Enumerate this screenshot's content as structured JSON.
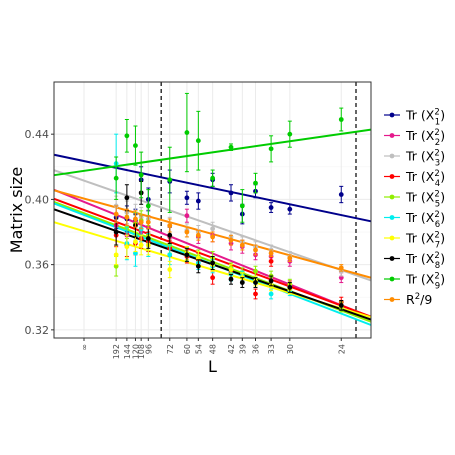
{
  "chart_data": {
    "type": "scatter",
    "xlabel": "L",
    "ylabel": "Matrix size",
    "grid": true,
    "legend_position": "right",
    "x_axis_kind": "reciprocal",
    "x_ticks": [
      {
        "label": "∞",
        "value": 0
      },
      {
        "label": "192",
        "value": 192
      },
      {
        "label": "144",
        "value": 144
      },
      {
        "label": "120",
        "value": 120
      },
      {
        "label": "108",
        "value": 108
      },
      {
        "label": "96",
        "value": 96
      },
      {
        "label": "72",
        "value": 72
      },
      {
        "label": "60",
        "value": 60
      },
      {
        "label": "54",
        "value": 54
      },
      {
        "label": "48",
        "value": 48
      },
      {
        "label": "42",
        "value": 42
      },
      {
        "label": "39",
        "value": 39
      },
      {
        "label": "36",
        "value": 36
      },
      {
        "label": "33",
        "value": 33
      },
      {
        "label": "30",
        "value": 30
      },
      {
        "label": "24",
        "value": 24
      }
    ],
    "y_ticks": [
      {
        "label": "0.32",
        "value": 0.32
      },
      {
        "label": "0.36",
        "value": 0.36
      },
      {
        "label": "0.40",
        "value": 0.4
      },
      {
        "label": "0.44",
        "value": 0.44
      }
    ],
    "ylim": [
      0.315,
      0.472
    ],
    "vlines": [
      {
        "L": 80,
        "style": "dashed",
        "color": "#000000"
      },
      {
        "L": 22.7,
        "style": "dashed",
        "color": "#000000"
      }
    ],
    "series": [
      {
        "name_base": "Tr (X",
        "name_sub": "1",
        "name_sup": "2",
        "name_close": ")",
        "color": "#00008b",
        "points": [
          {
            "L": 192,
            "y": 0.389,
            "err": 0.007
          },
          {
            "L": 144,
            "y": 0.388,
            "err": 0.008
          },
          {
            "L": 120,
            "y": 0.387,
            "err": 0.007
          },
          {
            "L": 108,
            "y": 0.412,
            "err": 0.008
          },
          {
            "L": 96,
            "y": 0.4,
            "err": 0.007
          },
          {
            "L": 72,
            "y": 0.411,
            "err": 0.007
          },
          {
            "L": 60,
            "y": 0.401,
            "err": 0.004
          },
          {
            "L": 54,
            "y": 0.399,
            "err": 0.005
          },
          {
            "L": 48,
            "y": 0.412,
            "err": 0.004
          },
          {
            "L": 42,
            "y": 0.404,
            "err": 0.005
          },
          {
            "L": 39,
            "y": 0.391,
            "err": 0.006
          },
          {
            "L": 36,
            "y": 0.405,
            "err": 0.004
          },
          {
            "L": 33,
            "y": 0.395,
            "err": 0.003
          },
          {
            "L": 30,
            "y": 0.394,
            "err": 0.003
          },
          {
            "L": 24,
            "y": 0.403,
            "err": 0.005
          }
        ],
        "fit": {
          "y_at_inf": 0.4235,
          "y_at_22_7": 0.3885
        }
      },
      {
        "name_base": "Tr (X",
        "name_sub": "2",
        "name_sup": "2",
        "name_close": ")",
        "color": "#e5198c",
        "points": [
          {
            "L": 192,
            "y": 0.384,
            "err": 0.006
          },
          {
            "L": 144,
            "y": 0.378,
            "err": 0.007
          },
          {
            "L": 120,
            "y": 0.386,
            "err": 0.006
          },
          {
            "L": 108,
            "y": 0.38,
            "err": 0.006
          },
          {
            "L": 96,
            "y": 0.383,
            "err": 0.007
          },
          {
            "L": 72,
            "y": 0.377,
            "err": 0.006
          },
          {
            "L": 60,
            "y": 0.39,
            "err": 0.004
          },
          {
            "L": 54,
            "y": 0.377,
            "err": 0.004
          },
          {
            "L": 48,
            "y": 0.378,
            "err": 0.004
          },
          {
            "L": 42,
            "y": 0.373,
            "err": 0.004
          },
          {
            "L": 39,
            "y": 0.371,
            "err": 0.004
          },
          {
            "L": 36,
            "y": 0.366,
            "err": 0.003
          },
          {
            "L": 33,
            "y": 0.365,
            "err": 0.003
          },
          {
            "L": 30,
            "y": 0.362,
            "err": 0.003
          },
          {
            "L": 24,
            "y": 0.352,
            "err": 0.003
          }
        ],
        "fit": {
          "y_at_inf": 0.3985,
          "y_at_22_7": 0.3315
        }
      },
      {
        "name_base": "Tr (X",
        "name_sub": "3",
        "name_sup": "2",
        "name_close": ")",
        "color": "#bfbfbf",
        "points": [
          {
            "L": 192,
            "y": 0.396,
            "err": 0.006
          },
          {
            "L": 144,
            "y": 0.392,
            "err": 0.007
          },
          {
            "L": 120,
            "y": 0.391,
            "err": 0.006
          },
          {
            "L": 108,
            "y": 0.389,
            "err": 0.006
          },
          {
            "L": 96,
            "y": 0.388,
            "err": 0.006
          },
          {
            "L": 72,
            "y": 0.384,
            "err": 0.005
          },
          {
            "L": 60,
            "y": 0.381,
            "err": 0.004
          },
          {
            "L": 54,
            "y": 0.38,
            "err": 0.004
          },
          {
            "L": 48,
            "y": 0.382,
            "err": 0.004
          },
          {
            "L": 42,
            "y": 0.377,
            "err": 0.003
          },
          {
            "L": 39,
            "y": 0.374,
            "err": 0.003
          },
          {
            "L": 36,
            "y": 0.371,
            "err": 0.003
          },
          {
            "L": 33,
            "y": 0.369,
            "err": 0.003
          },
          {
            "L": 30,
            "y": 0.365,
            "err": 0.003
          },
          {
            "L": 24,
            "y": 0.356,
            "err": 0.003
          }
        ],
        "fit": {
          "y_at_inf": 0.4115,
          "y_at_22_7": 0.3535
        }
      },
      {
        "name_base": "Tr (X",
        "name_sub": "4",
        "name_sup": "2",
        "name_close": ")",
        "color": "#ff0000",
        "points": [
          {
            "L": 192,
            "y": 0.378,
            "err": 0.007
          },
          {
            "L": 144,
            "y": 0.372,
            "err": 0.007
          },
          {
            "L": 120,
            "y": 0.373,
            "err": 0.007
          },
          {
            "L": 108,
            "y": 0.376,
            "err": 0.006
          },
          {
            "L": 96,
            "y": 0.374,
            "err": 0.006
          },
          {
            "L": 72,
            "y": 0.37,
            "err": 0.005
          },
          {
            "L": 60,
            "y": 0.365,
            "err": 0.004
          },
          {
            "L": 54,
            "y": 0.363,
            "err": 0.004
          },
          {
            "L": 48,
            "y": 0.352,
            "err": 0.004
          },
          {
            "L": 42,
            "y": 0.355,
            "err": 0.003
          },
          {
            "L": 39,
            "y": 0.353,
            "err": 0.003
          },
          {
            "L": 36,
            "y": 0.342,
            "err": 0.003
          },
          {
            "L": 33,
            "y": 0.362,
            "err": 0.003
          },
          {
            "L": 30,
            "y": 0.347,
            "err": 0.003
          },
          {
            "L": 24,
            "y": 0.337,
            "err": 0.003
          }
        ],
        "fit": {
          "y_at_inf": 0.3935,
          "y_at_22_7": 0.3315
        }
      },
      {
        "name_base": "Tr (X",
        "name_sub": "5",
        "name_sup": "2",
        "name_close": ")",
        "color": "#90ee00",
        "points": [
          {
            "L": 192,
            "y": 0.359,
            "err": 0.006
          },
          {
            "L": 144,
            "y": 0.383,
            "err": 0.007
          },
          {
            "L": 120,
            "y": 0.385,
            "err": 0.007
          },
          {
            "L": 108,
            "y": 0.387,
            "err": 0.006
          },
          {
            "L": 96,
            "y": 0.378,
            "err": 0.006
          },
          {
            "L": 72,
            "y": 0.372,
            "err": 0.005
          },
          {
            "L": 60,
            "y": 0.367,
            "err": 0.004
          },
          {
            "L": 54,
            "y": 0.365,
            "err": 0.004
          },
          {
            "L": 48,
            "y": 0.364,
            "err": 0.004
          },
          {
            "L": 42,
            "y": 0.358,
            "err": 0.003
          },
          {
            "L": 39,
            "y": 0.355,
            "err": 0.003
          },
          {
            "L": 36,
            "y": 0.356,
            "err": 0.003
          },
          {
            "L": 33,
            "y": 0.353,
            "err": 0.003
          },
          {
            "L": 30,
            "y": 0.348,
            "err": 0.003
          },
          {
            "L": 24,
            "y": 0.334,
            "err": 0.003
          }
        ],
        "fit": {
          "y_at_inf": 0.3915,
          "y_at_22_7": 0.3285
        }
      },
      {
        "name_base": "Tr (X",
        "name_sub": "6",
        "name_sup": "2",
        "name_close": ")",
        "color": "#00eeee",
        "points": [
          {
            "L": 192,
            "y": 0.422,
            "err": 0.018
          },
          {
            "L": 144,
            "y": 0.373,
            "err": 0.01
          },
          {
            "L": 120,
            "y": 0.367,
            "err": 0.008
          },
          {
            "L": 108,
            "y": 0.382,
            "err": 0.008
          },
          {
            "L": 96,
            "y": 0.372,
            "err": 0.007
          },
          {
            "L": 72,
            "y": 0.366,
            "err": 0.006
          },
          {
            "L": 60,
            "y": 0.366,
            "err": 0.004
          },
          {
            "L": 54,
            "y": 0.361,
            "err": 0.004
          },
          {
            "L": 48,
            "y": 0.359,
            "err": 0.004
          },
          {
            "L": 42,
            "y": 0.354,
            "err": 0.004
          },
          {
            "L": 39,
            "y": 0.353,
            "err": 0.003
          },
          {
            "L": 36,
            "y": 0.349,
            "err": 0.003
          },
          {
            "L": 33,
            "y": 0.342,
            "err": 0.003
          },
          {
            "L": 30,
            "y": 0.344,
            "err": 0.003
          },
          {
            "L": 24,
            "y": 0.335,
            "err": 0.003
          }
        ],
        "fit": {
          "y_at_inf": 0.3905,
          "y_at_22_7": 0.3265
        }
      },
      {
        "name_base": "Tr (X",
        "name_sub": "7",
        "name_sup": "2",
        "name_close": ")",
        "color": "#ffff00",
        "points": [
          {
            "L": 192,
            "y": 0.366,
            "err": 0.006
          },
          {
            "L": 144,
            "y": 0.371,
            "err": 0.007
          },
          {
            "L": 120,
            "y": 0.374,
            "err": 0.006
          },
          {
            "L": 108,
            "y": 0.372,
            "err": 0.006
          },
          {
            "L": 96,
            "y": 0.372,
            "err": 0.006
          },
          {
            "L": 72,
            "y": 0.357,
            "err": 0.005
          },
          {
            "L": 60,
            "y": 0.367,
            "err": 0.004
          },
          {
            "L": 54,
            "y": 0.364,
            "err": 0.004
          },
          {
            "L": 48,
            "y": 0.36,
            "err": 0.004
          },
          {
            "L": 42,
            "y": 0.357,
            "err": 0.003
          },
          {
            "L": 39,
            "y": 0.352,
            "err": 0.003
          },
          {
            "L": 36,
            "y": 0.35,
            "err": 0.003
          },
          {
            "L": 33,
            "y": 0.347,
            "err": 0.003
          },
          {
            "L": 30,
            "y": 0.345,
            "err": 0.003
          },
          {
            "L": 24,
            "y": 0.335,
            "err": 0.003
          }
        ],
        "fit": {
          "y_at_inf": 0.3805,
          "y_at_22_7": 0.3305
        }
      },
      {
        "name_base": "Tr (X",
        "name_sub": "8",
        "name_sup": "2",
        "name_close": ")",
        "color": "#000000",
        "points": [
          {
            "L": 192,
            "y": 0.38,
            "err": 0.008
          },
          {
            "L": 144,
            "y": 0.401,
            "err": 0.008
          },
          {
            "L": 120,
            "y": 0.384,
            "err": 0.007
          },
          {
            "L": 108,
            "y": 0.404,
            "err": 0.007
          },
          {
            "L": 96,
            "y": 0.376,
            "err": 0.006
          },
          {
            "L": 72,
            "y": 0.378,
            "err": 0.005
          },
          {
            "L": 60,
            "y": 0.366,
            "err": 0.004
          },
          {
            "L": 54,
            "y": 0.359,
            "err": 0.004
          },
          {
            "L": 48,
            "y": 0.361,
            "err": 0.004
          },
          {
            "L": 42,
            "y": 0.351,
            "err": 0.003
          },
          {
            "L": 39,
            "y": 0.349,
            "err": 0.003
          },
          {
            "L": 36,
            "y": 0.349,
            "err": 0.003
          },
          {
            "L": 33,
            "y": 0.35,
            "err": 0.003
          },
          {
            "L": 30,
            "y": 0.346,
            "err": 0.003
          },
          {
            "L": 24,
            "y": 0.335,
            "err": 0.003
          }
        ],
        "fit": {
          "y_at_inf": 0.3875,
          "y_at_22_7": 0.3295
        }
      },
      {
        "name_base": "Tr (X",
        "name_sub": "9",
        "name_sup": "2",
        "name_close": ")",
        "color": "#00cc00",
        "points": [
          {
            "L": 192,
            "y": 0.413,
            "err": 0.013
          },
          {
            "L": 144,
            "y": 0.439,
            "err": 0.01
          },
          {
            "L": 120,
            "y": 0.433,
            "err": 0.012
          },
          {
            "L": 108,
            "y": 0.415,
            "err": 0.014
          },
          {
            "L": 96,
            "y": 0.396,
            "err": 0.01
          },
          {
            "L": 72,
            "y": 0.412,
            "err": 0.02
          },
          {
            "L": 60,
            "y": 0.441,
            "err": 0.024
          },
          {
            "L": 54,
            "y": 0.436,
            "err": 0.018
          },
          {
            "L": 48,
            "y": 0.413,
            "err": 0.005
          },
          {
            "L": 42,
            "y": 0.432,
            "err": 0.002
          },
          {
            "L": 39,
            "y": 0.396,
            "err": 0.01
          },
          {
            "L": 36,
            "y": 0.41,
            "err": 0.006
          },
          {
            "L": 33,
            "y": 0.431,
            "err": 0.008
          },
          {
            "L": 30,
            "y": 0.44,
            "err": 0.008
          },
          {
            "L": 24,
            "y": 0.449,
            "err": 0.007
          }
        ],
        "fit": {
          "y_at_inf": 0.4175,
          "y_at_22_7": 0.4415
        }
      },
      {
        "name_base": "R",
        "name_sub": "",
        "name_sup": "2",
        "name_close": "/9",
        "color": "#ff8c00",
        "points": [
          {
            "L": 192,
            "y": 0.391,
            "err": 0.005
          },
          {
            "L": 144,
            "y": 0.389,
            "err": 0.005
          },
          {
            "L": 120,
            "y": 0.388,
            "err": 0.005
          },
          {
            "L": 108,
            "y": 0.386,
            "err": 0.004
          },
          {
            "L": 96,
            "y": 0.386,
            "err": 0.004
          },
          {
            "L": 72,
            "y": 0.384,
            "err": 0.004
          },
          {
            "L": 60,
            "y": 0.38,
            "err": 0.003
          },
          {
            "L": 54,
            "y": 0.378,
            "err": 0.003
          },
          {
            "L": 48,
            "y": 0.377,
            "err": 0.003
          },
          {
            "L": 42,
            "y": 0.375,
            "err": 0.003
          },
          {
            "L": 39,
            "y": 0.372,
            "err": 0.003
          },
          {
            "L": 36,
            "y": 0.369,
            "err": 0.003
          },
          {
            "L": 33,
            "y": 0.367,
            "err": 0.002
          },
          {
            "L": 30,
            "y": 0.364,
            "err": 0.002
          },
          {
            "L": 24,
            "y": 0.358,
            "err": 0.002
          }
        ],
        "fit": {
          "y_at_inf": 0.4005,
          "y_at_22_7": 0.3545
        }
      }
    ]
  }
}
